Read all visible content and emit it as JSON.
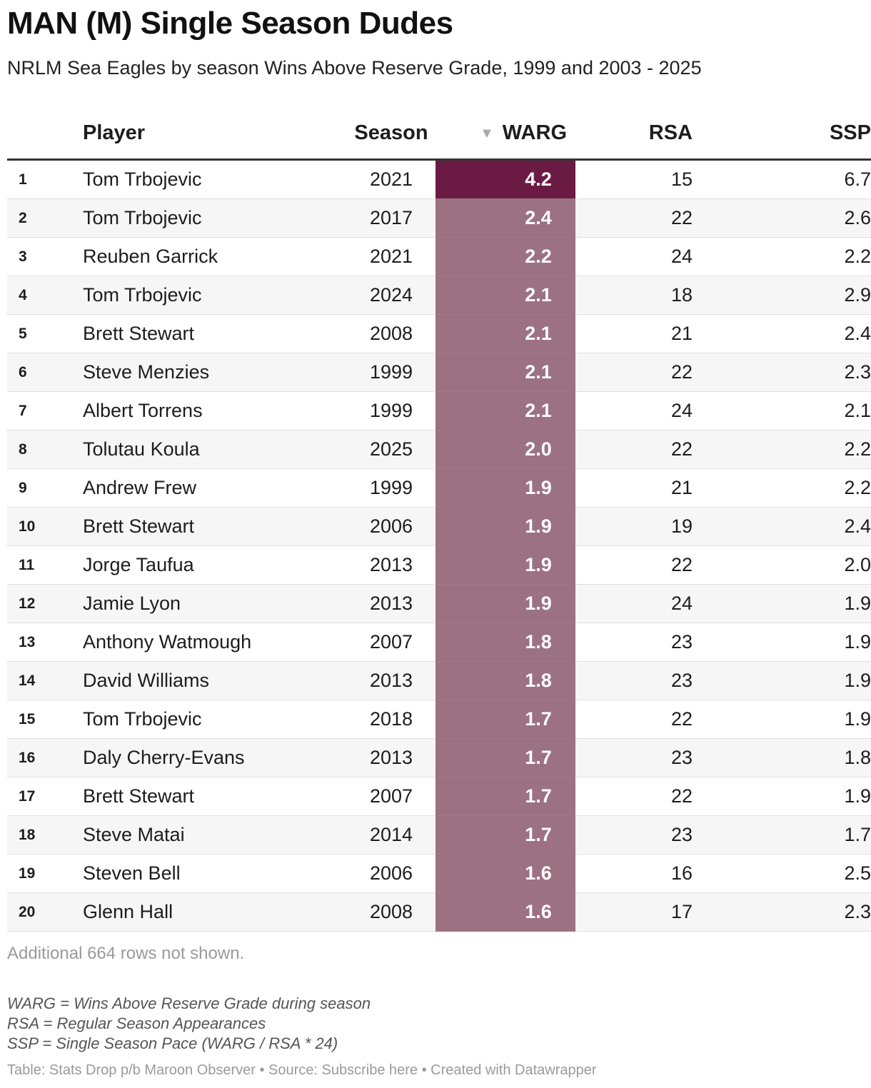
{
  "title": "MAN (M) Single Season Dudes",
  "subtitle": "NRLM Sea Eagles by season Wins Above Reserve Grade, 1999 and 2003 - 2025",
  "columns": {
    "rank": "",
    "player": "Player",
    "season": "Season",
    "warg": "WARG",
    "rsa": "RSA",
    "ssp": "SSP"
  },
  "sort_indicator": "▼",
  "colors": {
    "warg_top": "#6b1b43",
    "warg_other": "#9c7181",
    "row_alt": "#f6f6f6"
  },
  "chart_data": {
    "type": "table",
    "sorted_by": "WARG",
    "sort_direction": "descending",
    "columns": [
      "",
      "Player",
      "Season",
      "WARG",
      "RSA",
      "SSP"
    ],
    "rows": [
      {
        "rank": "1",
        "player": "Tom Trbojevic",
        "season": "2021",
        "warg": "4.2",
        "rsa": "15",
        "ssp": "6.7"
      },
      {
        "rank": "2",
        "player": "Tom Trbojevic",
        "season": "2017",
        "warg": "2.4",
        "rsa": "22",
        "ssp": "2.6"
      },
      {
        "rank": "3",
        "player": "Reuben Garrick",
        "season": "2021",
        "warg": "2.2",
        "rsa": "24",
        "ssp": "2.2"
      },
      {
        "rank": "4",
        "player": "Tom Trbojevic",
        "season": "2024",
        "warg": "2.1",
        "rsa": "18",
        "ssp": "2.9"
      },
      {
        "rank": "5",
        "player": "Brett Stewart",
        "season": "2008",
        "warg": "2.1",
        "rsa": "21",
        "ssp": "2.4"
      },
      {
        "rank": "6",
        "player": "Steve Menzies",
        "season": "1999",
        "warg": "2.1",
        "rsa": "22",
        "ssp": "2.3"
      },
      {
        "rank": "7",
        "player": "Albert Torrens",
        "season": "1999",
        "warg": "2.1",
        "rsa": "24",
        "ssp": "2.1"
      },
      {
        "rank": "8",
        "player": "Tolutau Koula",
        "season": "2025",
        "warg": "2.0",
        "rsa": "22",
        "ssp": "2.2"
      },
      {
        "rank": "9",
        "player": "Andrew Frew",
        "season": "1999",
        "warg": "1.9",
        "rsa": "21",
        "ssp": "2.2"
      },
      {
        "rank": "10",
        "player": "Brett Stewart",
        "season": "2006",
        "warg": "1.9",
        "rsa": "19",
        "ssp": "2.4"
      },
      {
        "rank": "11",
        "player": "Jorge Taufua",
        "season": "2013",
        "warg": "1.9",
        "rsa": "22",
        "ssp": "2.0"
      },
      {
        "rank": "12",
        "player": "Jamie Lyon",
        "season": "2013",
        "warg": "1.9",
        "rsa": "24",
        "ssp": "1.9"
      },
      {
        "rank": "13",
        "player": "Anthony Watmough",
        "season": "2007",
        "warg": "1.8",
        "rsa": "23",
        "ssp": "1.9"
      },
      {
        "rank": "14",
        "player": "David Williams",
        "season": "2013",
        "warg": "1.8",
        "rsa": "23",
        "ssp": "1.9"
      },
      {
        "rank": "15",
        "player": "Tom Trbojevic",
        "season": "2018",
        "warg": "1.7",
        "rsa": "22",
        "ssp": "1.9"
      },
      {
        "rank": "16",
        "player": "Daly Cherry-Evans",
        "season": "2013",
        "warg": "1.7",
        "rsa": "23",
        "ssp": "1.8"
      },
      {
        "rank": "17",
        "player": "Brett Stewart",
        "season": "2007",
        "warg": "1.7",
        "rsa": "22",
        "ssp": "1.9"
      },
      {
        "rank": "18",
        "player": "Steve Matai",
        "season": "2014",
        "warg": "1.7",
        "rsa": "23",
        "ssp": "1.7"
      },
      {
        "rank": "19",
        "player": "Steven Bell",
        "season": "2006",
        "warg": "1.6",
        "rsa": "16",
        "ssp": "2.5"
      },
      {
        "rank": "20",
        "player": "Glenn Hall",
        "season": "2008",
        "warg": "1.6",
        "rsa": "17",
        "ssp": "2.3"
      }
    ]
  },
  "more_rows": "Additional 664 rows not shown.",
  "notes": [
    "WARG = Wins Above Reserve Grade during season",
    "RSA = Regular Season Appearances",
    "SSP = Single Season Pace (WARG / RSA * 24)"
  ],
  "credit": "Table: Stats Drop p/b Maroon Observer • Source: Subscribe here • Created with Datawrapper"
}
